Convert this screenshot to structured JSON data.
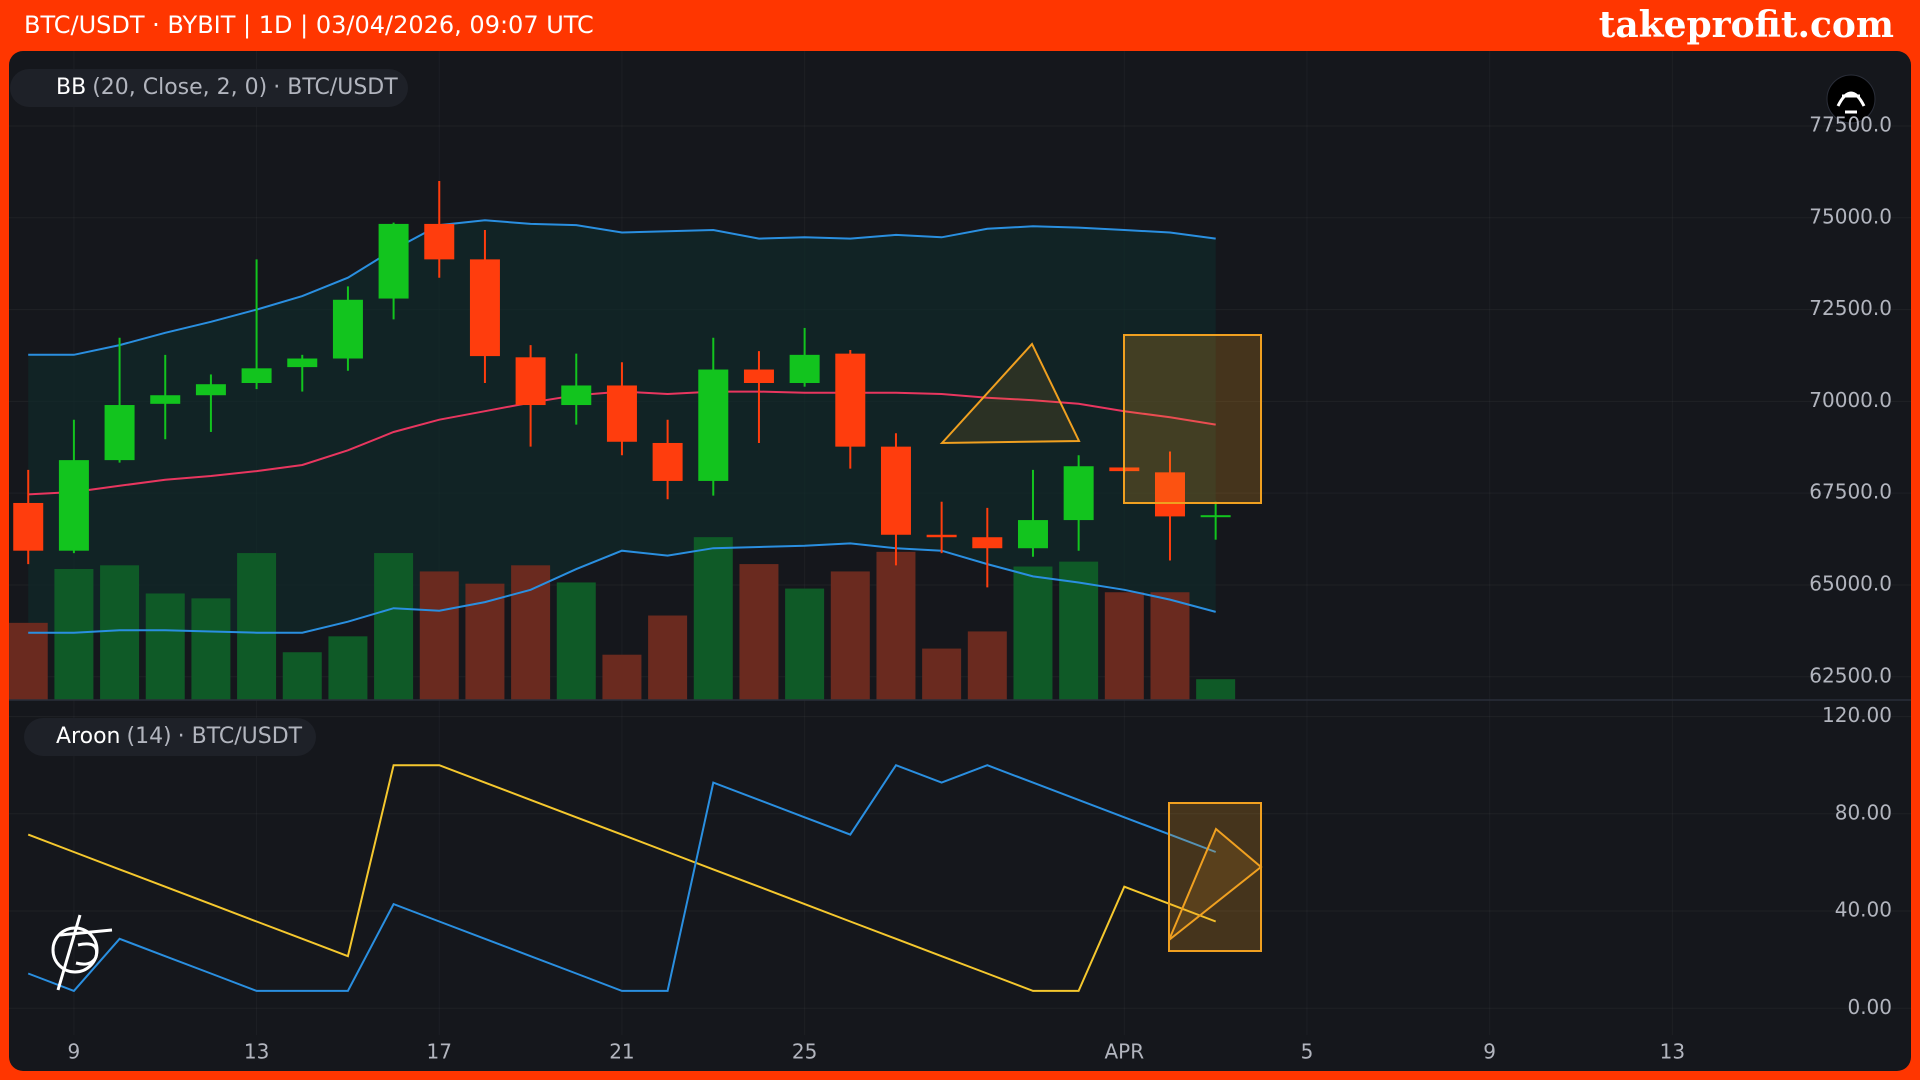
{
  "header": {
    "title": "BTC/USDT · BYBIT | 1D | 03/04/2026, 09:07 UTC",
    "brand": "takeprofit.com"
  },
  "chart_data": [
    {
      "type": "candlestick",
      "title": "BB",
      "params": "(20, Close, 2, 0)",
      "symbol": "· BTC/USDT",
      "categories": [
        null,
        "9",
        null,
        null,
        null,
        "13",
        null,
        null,
        null,
        "17",
        null,
        null,
        null,
        "21",
        null,
        null,
        null,
        "25",
        null,
        null,
        null,
        null,
        null,
        null,
        "APR",
        null,
        null,
        null,
        "5",
        null,
        null,
        null,
        "9",
        null,
        null,
        null,
        "13",
        null,
        null,
        null,
        null
      ],
      "open": [
        67233,
        65933,
        68400,
        69933,
        70167,
        70500,
        70933,
        71167,
        72800,
        74833,
        73867,
        71200,
        69900,
        70433,
        68867,
        67833,
        70867,
        70500,
        71300,
        68767,
        66367,
        66300,
        66000,
        66767,
        68200,
        68067,
        66867,
        null,
        null,
        null,
        null,
        null,
        null,
        null,
        null,
        null,
        null,
        null,
        null,
        null,
        null
      ],
      "high": [
        68133,
        69500,
        71733,
        71267,
        70733,
        73867,
        71267,
        73133,
        74867,
        76000,
        74667,
        71533,
        71300,
        71067,
        69500,
        71733,
        71367,
        72000,
        71400,
        69133,
        67267,
        67100,
        68133,
        68533,
        68200,
        68633,
        67267,
        null,
        null,
        null,
        null,
        null,
        null,
        null,
        null,
        null,
        null,
        null,
        null,
        null,
        null
      ],
      "low": [
        65567,
        65867,
        68333,
        68967,
        69167,
        70333,
        70267,
        70833,
        72233,
        73367,
        70500,
        68767,
        69367,
        68533,
        67333,
        67433,
        68867,
        70400,
        68167,
        65533,
        65867,
        64933,
        65767,
        65933,
        68067,
        65667,
        66233,
        null,
        null,
        null,
        null,
        null,
        null,
        null,
        null,
        null,
        null,
        null,
        null,
        null,
        null
      ],
      "close": [
        65933,
        68400,
        69900,
        70167,
        70467,
        70900,
        71167,
        72767,
        74833,
        73867,
        71233,
        69900,
        70433,
        68900,
        67833,
        70867,
        70500,
        71267,
        68767,
        66367,
        66300,
        66000,
        66767,
        68233,
        68100,
        66867,
        66900,
        null,
        null,
        null,
        null,
        null,
        null,
        null,
        null,
        null,
        null,
        null,
        null,
        null,
        null
      ],
      "volume": [
        63,
        107,
        110,
        87,
        83,
        120,
        39,
        52,
        120,
        105,
        95,
        110,
        96,
        37,
        69,
        133,
        111,
        91,
        105,
        121,
        42,
        56,
        109,
        113,
        88,
        88,
        17,
        null,
        null,
        null,
        null,
        null,
        null,
        null,
        null,
        null,
        null,
        null,
        null,
        null,
        null
      ],
      "up_color": "#12c41e",
      "down_color": "#ff3d0d",
      "volume_up_color": "#0f5a27",
      "volume_down_color": "#6a2a1f",
      "band_color": "#0f2a2a",
      "series": [
        {
          "color": "#2a8fe0",
          "values": [
            71267,
            71267,
            71533,
            71867,
            72167,
            72500,
            72867,
            73367,
            74133,
            74800,
            74933,
            74833,
            74800,
            74600,
            74633,
            74667,
            74433,
            74467,
            74433,
            74533,
            74467,
            74700,
            74767,
            74733,
            74667,
            74600,
            74433,
            null,
            null,
            null,
            null,
            null,
            null,
            null,
            null,
            null,
            null,
            null,
            null,
            null,
            null
          ]
        },
        {
          "color": "#e8365f",
          "values": [
            67467,
            67533,
            67700,
            67867,
            67967,
            68100,
            68267,
            68667,
            69167,
            69500,
            69733,
            69967,
            70167,
            70267,
            70200,
            70267,
            70267,
            70233,
            70233,
            70233,
            70200,
            70100,
            70033,
            69933,
            69733,
            69567,
            69367,
            null,
            null,
            null,
            null,
            null,
            null,
            null,
            null,
            null,
            null,
            null,
            null,
            null,
            null
          ]
        },
        {
          "color": "#2a8fe0",
          "values": [
            63700,
            63700,
            63767,
            63767,
            63733,
            63700,
            63700,
            64000,
            64367,
            64300,
            64533,
            64867,
            65433,
            65933,
            65800,
            66000,
            66033,
            66067,
            66133,
            66000,
            65933,
            65567,
            65233,
            65067,
            64867,
            64600,
            64267,
            null,
            null,
            null,
            null,
            null,
            null,
            null,
            null,
            null,
            null,
            null,
            null,
            null,
            null
          ]
        }
      ],
      "ylim": [
        61867,
        79433
      ],
      "yticks": [
        {
          "value": 62500,
          "label": "62500.0"
        },
        {
          "value": 65000,
          "label": "65000.0"
        },
        {
          "value": 67500,
          "label": "67500.0"
        },
        {
          "value": 70000,
          "label": "70000.0"
        },
        {
          "value": 72500,
          "label": "72500.0"
        },
        {
          "value": 75000,
          "label": "75000.0"
        },
        {
          "value": 77500,
          "label": "77500.0"
        }
      ],
      "grid": true
    },
    {
      "type": "line",
      "title": "Aroon",
      "params": "(14)",
      "symbol": "· BTC/USDT",
      "series": [
        {
          "color": "#f5c82e",
          "values": [
            71.43,
            64.29,
            57.14,
            50,
            42.86,
            35.71,
            28.57,
            21.43,
            100,
            100,
            92.86,
            85.71,
            78.57,
            71.43,
            64.29,
            57.14,
            50,
            42.86,
            35.71,
            28.57,
            21.43,
            14.29,
            7.14,
            7.14,
            50,
            42.86,
            35.71,
            null,
            null,
            null,
            null,
            null,
            null,
            null,
            null,
            null,
            null,
            null,
            null,
            null,
            null
          ]
        },
        {
          "color": "#2a8fe0",
          "values": [
            14.29,
            7.14,
            28.57,
            21.43,
            14.29,
            7.14,
            7.14,
            7.14,
            42.86,
            35.71,
            28.57,
            21.43,
            14.29,
            7.14,
            7.14,
            92.86,
            85.71,
            78.57,
            71.43,
            100,
            92.86,
            100,
            92.86,
            85.71,
            78.57,
            71.43,
            64.29,
            null,
            null,
            null,
            null,
            null,
            null,
            null,
            null,
            null,
            null,
            null,
            null,
            null,
            null
          ]
        }
      ],
      "ylim": [
        -11,
        126
      ],
      "yticks": [
        {
          "value": 0,
          "label": "0.00"
        },
        {
          "value": 40,
          "label": "40.00"
        },
        {
          "value": 80,
          "label": "80.00"
        },
        {
          "value": 120,
          "label": "120.00"
        }
      ],
      "grid": true
    }
  ]
}
